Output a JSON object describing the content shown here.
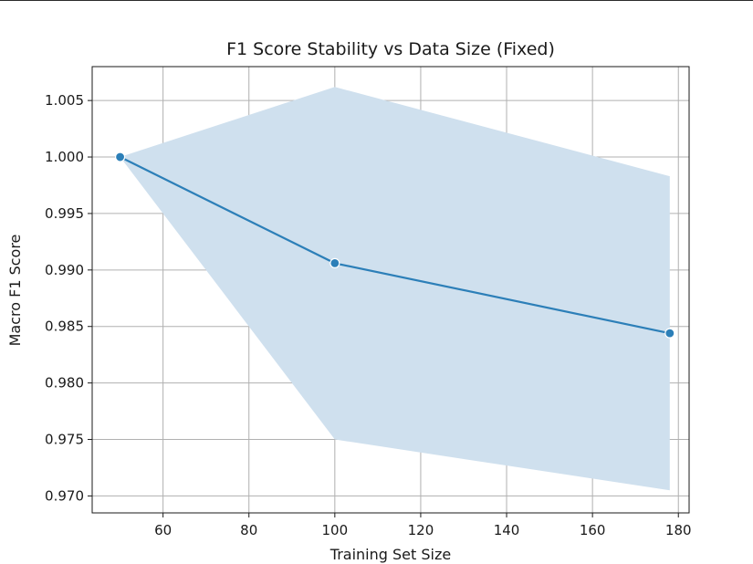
{
  "chart_data": {
    "type": "line",
    "title": "F1 Score Stability vs Data Size (Fixed)",
    "xlabel": "Training Set Size",
    "ylabel": "Macro F1 Score",
    "xlim": [
      43.5,
      182.5
    ],
    "ylim": [
      0.9685,
      1.008
    ],
    "x_ticks": [
      60,
      80,
      100,
      120,
      140,
      160,
      180
    ],
    "x_tick_labels": [
      "60",
      "80",
      "100",
      "120",
      "140",
      "160",
      "180"
    ],
    "y_ticks": [
      0.97,
      0.975,
      0.98,
      0.985,
      0.99,
      0.995,
      1.0,
      1.005
    ],
    "y_tick_labels": [
      "0.970",
      "0.975",
      "0.980",
      "0.985",
      "0.990",
      "0.995",
      "1.000",
      "1.005"
    ],
    "grid": true,
    "series": [
      {
        "x": [
          50,
          100,
          178
        ],
        "values": [
          1.0,
          0.9906,
          0.9844
        ],
        "band_upper": [
          1.0,
          1.0062,
          0.9983
        ],
        "band_lower": [
          1.0,
          0.975,
          0.9705
        ],
        "color": "#2c7fb8",
        "band_color": "#cfe0ee",
        "marker": "circle"
      }
    ]
  }
}
